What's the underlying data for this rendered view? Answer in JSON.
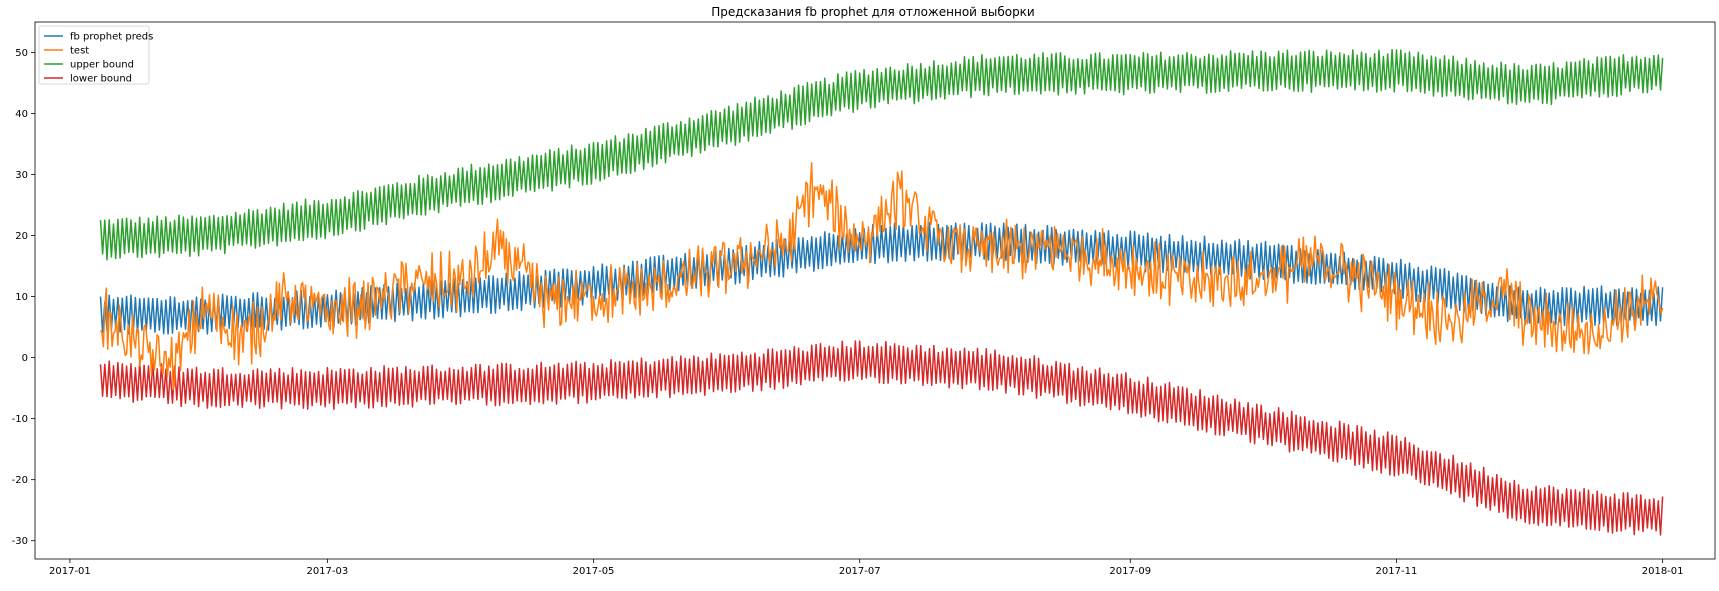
{
  "chart_data": {
    "type": "line",
    "title": "Предсказания fb prophet для отложенной выборки",
    "xlabel": "",
    "ylabel": "",
    "xlim": [
      "2016-12-24",
      "2018-01-13"
    ],
    "ylim": [
      -33,
      55
    ],
    "x_ticks": [
      "2017-01",
      "2017-03",
      "2017-05",
      "2017-07",
      "2017-09",
      "2017-11",
      "2018-01"
    ],
    "y_ticks": [
      -30,
      -20,
      -10,
      0,
      10,
      20,
      30,
      40,
      50
    ],
    "legend_position": "top-left",
    "grid": false,
    "x_start": "2017-01-08",
    "x_end": "2018-01-01",
    "x_step": "1 day",
    "series": [
      {
        "name": "fb prophet preds",
        "color": "#1f77b4",
        "center_points": [
          [
            "2017-01-08",
            7
          ],
          [
            "2017-02-01",
            7
          ],
          [
            "2017-03-01",
            8
          ],
          [
            "2017-04-01",
            10
          ],
          [
            "2017-05-01",
            12
          ],
          [
            "2017-06-01",
            15
          ],
          [
            "2017-07-01",
            18.5
          ],
          [
            "2017-07-15",
            19
          ],
          [
            "2017-08-01",
            19
          ],
          [
            "2017-09-01",
            17.5
          ],
          [
            "2017-10-01",
            16
          ],
          [
            "2017-11-01",
            13
          ],
          [
            "2017-12-01",
            8.5
          ],
          [
            "2018-01-01",
            8.5
          ]
        ],
        "daily_amplitude": 2.6
      },
      {
        "name": "test",
        "color": "#ff7f0e",
        "points": [
          [
            "2017-01-08",
            7
          ],
          [
            "2017-01-15",
            3
          ],
          [
            "2017-01-20",
            0
          ],
          [
            "2017-01-25",
            -1
          ],
          [
            "2017-02-01",
            8
          ],
          [
            "2017-02-10",
            3
          ],
          [
            "2017-02-20",
            10
          ],
          [
            "2017-03-01",
            7
          ],
          [
            "2017-03-10",
            9
          ],
          [
            "2017-03-20",
            12
          ],
          [
            "2017-04-01",
            12
          ],
          [
            "2017-04-10",
            18
          ],
          [
            "2017-04-20",
            9
          ],
          [
            "2017-05-01",
            10
          ],
          [
            "2017-05-15",
            11
          ],
          [
            "2017-06-01",
            15
          ],
          [
            "2017-06-15",
            19
          ],
          [
            "2017-06-20",
            28
          ],
          [
            "2017-07-01",
            19
          ],
          [
            "2017-07-10",
            26
          ],
          [
            "2017-07-20",
            19
          ],
          [
            "2017-08-01",
            17
          ],
          [
            "2017-08-15",
            18
          ],
          [
            "2017-09-01",
            15
          ],
          [
            "2017-09-15",
            12
          ],
          [
            "2017-10-01",
            13
          ],
          [
            "2017-10-15",
            16
          ],
          [
            "2017-11-01",
            10
          ],
          [
            "2017-11-15",
            6
          ],
          [
            "2017-11-25",
            11
          ],
          [
            "2017-12-01",
            6
          ],
          [
            "2017-12-15",
            4
          ],
          [
            "2017-12-25",
            8
          ],
          [
            "2018-01-01",
            9
          ]
        ],
        "noise_amplitude": 4
      },
      {
        "name": "upper bound",
        "color": "#2ca02c",
        "center_points": [
          [
            "2017-01-08",
            19.5
          ],
          [
            "2017-02-01",
            20
          ],
          [
            "2017-03-01",
            23
          ],
          [
            "2017-04-01",
            28
          ],
          [
            "2017-05-01",
            32
          ],
          [
            "2017-06-01",
            38
          ],
          [
            "2017-07-01",
            44
          ],
          [
            "2017-08-01",
            46.5
          ],
          [
            "2017-09-01",
            46.5
          ],
          [
            "2017-10-01",
            47
          ],
          [
            "2017-11-01",
            47
          ],
          [
            "2017-12-01",
            44.5
          ],
          [
            "2018-01-01",
            47
          ]
        ],
        "daily_amplitude": 2.8
      },
      {
        "name": "lower bound",
        "color": "#d62728",
        "center_points": [
          [
            "2017-01-08",
            -3.5
          ],
          [
            "2017-02-01",
            -5
          ],
          [
            "2017-03-01",
            -5
          ],
          [
            "2017-04-01",
            -4.5
          ],
          [
            "2017-05-01",
            -4
          ],
          [
            "2017-06-01",
            -2.5
          ],
          [
            "2017-07-01",
            -0.5
          ],
          [
            "2017-08-01",
            -2
          ],
          [
            "2017-09-01",
            -6
          ],
          [
            "2017-10-01",
            -11
          ],
          [
            "2017-11-01",
            -16
          ],
          [
            "2017-12-01",
            -24
          ],
          [
            "2018-01-01",
            -26
          ]
        ],
        "daily_amplitude": 2.8
      }
    ]
  }
}
